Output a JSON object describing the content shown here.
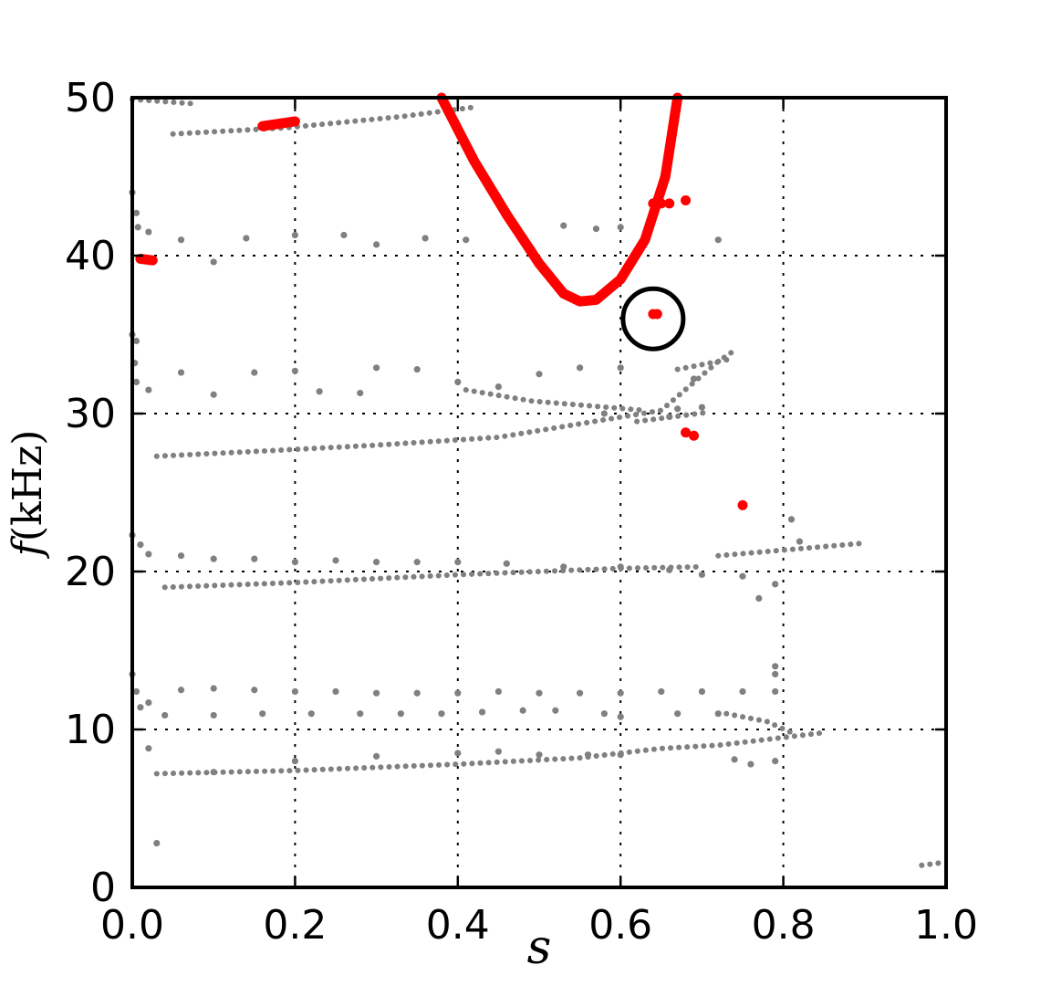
{
  "chart_data": {
    "type": "scatter",
    "title": "",
    "xlabel": "s",
    "ylabel_main": "f",
    "ylabel_unit": "(kHz)",
    "xlim": [
      0.0,
      1.0
    ],
    "ylim": [
      0,
      50
    ],
    "grid": true,
    "grid_style": "dotted",
    "x_ticks": [
      "0.0",
      "0.2",
      "0.4",
      "0.6",
      "0.8",
      "1.0"
    ],
    "y_ticks": [
      "0",
      "10",
      "20",
      "30",
      "40",
      "50"
    ],
    "colors": {
      "gray": "#808080",
      "red": "#ff0000",
      "marker": "#000000"
    },
    "gray_lines": [
      {
        "x": [
          0.05,
          0.19,
          0.33,
          0.42
        ],
        "y": [
          47.7,
          48.1,
          48.8,
          49.4
        ]
      },
      {
        "x": [
          0.0,
          0.08
        ],
        "y": [
          49.9,
          49.6
        ]
      },
      {
        "x": [
          0.03,
          0.15,
          0.3,
          0.45,
          0.65,
          0.72,
          0.74
        ],
        "y": [
          27.3,
          27.6,
          28.0,
          28.5,
          30.2,
          33.3,
          34.0
        ]
      },
      {
        "x": [
          0.62,
          0.71
        ],
        "y": [
          29.5,
          30.1
        ]
      },
      {
        "x": [
          0.67,
          0.74
        ],
        "y": [
          32.8,
          33.5
        ]
      },
      {
        "x": [
          0.04,
          0.2,
          0.4,
          0.6,
          0.7
        ],
        "y": [
          19.0,
          19.3,
          19.8,
          20.2,
          20.3
        ]
      },
      {
        "x": [
          0.72,
          0.9
        ],
        "y": [
          21.0,
          21.8
        ]
      },
      {
        "x": [
          0.03,
          0.2,
          0.4,
          0.55,
          0.65,
          0.72,
          0.85
        ],
        "y": [
          7.2,
          7.4,
          7.8,
          8.2,
          8.8,
          9.0,
          9.8
        ]
      },
      {
        "x": [
          0.73,
          0.78,
          0.81
        ],
        "y": [
          11.0,
          10.5,
          9.8
        ]
      },
      {
        "x": [
          0.97,
          1.0
        ],
        "y": [
          1.4,
          1.6
        ]
      },
      {
        "x": [
          0.41,
          0.49,
          0.63
        ],
        "y": [
          31.5,
          30.8,
          30.2
        ]
      }
    ],
    "gray_points": [
      [
        0.0,
        44.0
      ],
      [
        0.005,
        42.7
      ],
      [
        0.007,
        41.8
      ],
      [
        0.02,
        41.5
      ],
      [
        0.06,
        41.0
      ],
      [
        0.1,
        39.6
      ],
      [
        0.14,
        41.1
      ],
      [
        0.2,
        41.3
      ],
      [
        0.26,
        41.3
      ],
      [
        0.3,
        40.7
      ],
      [
        0.36,
        41.1
      ],
      [
        0.41,
        41.0
      ],
      [
        0.53,
        41.9
      ],
      [
        0.57,
        41.7
      ],
      [
        0.6,
        41.8
      ],
      [
        0.72,
        41.0
      ],
      [
        0.0,
        35.0
      ],
      [
        0.005,
        34.6
      ],
      [
        0.003,
        33.2
      ],
      [
        0.005,
        32.0
      ],
      [
        0.02,
        31.5
      ],
      [
        0.06,
        32.6
      ],
      [
        0.1,
        31.2
      ],
      [
        0.15,
        32.6
      ],
      [
        0.2,
        32.7
      ],
      [
        0.23,
        31.4
      ],
      [
        0.28,
        31.3
      ],
      [
        0.3,
        32.9
      ],
      [
        0.35,
        32.8
      ],
      [
        0.4,
        32.0
      ],
      [
        0.45,
        31.7
      ],
      [
        0.5,
        32.5
      ],
      [
        0.55,
        32.9
      ],
      [
        0.6,
        32.9
      ],
      [
        0.69,
        32.2
      ],
      [
        0.0,
        22.3
      ],
      [
        0.01,
        21.7
      ],
      [
        0.02,
        21.1
      ],
      [
        0.06,
        21.0
      ],
      [
        0.1,
        20.8
      ],
      [
        0.15,
        20.8
      ],
      [
        0.2,
        20.6
      ],
      [
        0.25,
        20.7
      ],
      [
        0.3,
        20.6
      ],
      [
        0.35,
        20.6
      ],
      [
        0.4,
        20.6
      ],
      [
        0.46,
        20.5
      ],
      [
        0.53,
        20.3
      ],
      [
        0.6,
        20.3
      ],
      [
        0.66,
        20.1
      ],
      [
        0.7,
        19.8
      ],
      [
        0.75,
        19.7
      ],
      [
        0.79,
        19.2
      ],
      [
        0.77,
        18.3
      ],
      [
        0.82,
        21.9
      ],
      [
        0.81,
        23.3
      ],
      [
        0.0,
        13.5
      ],
      [
        0.005,
        12.4
      ],
      [
        0.01,
        11.4
      ],
      [
        0.02,
        11.7
      ],
      [
        0.06,
        12.5
      ],
      [
        0.1,
        12.6
      ],
      [
        0.15,
        12.5
      ],
      [
        0.2,
        12.4
      ],
      [
        0.25,
        12.4
      ],
      [
        0.3,
        12.3
      ],
      [
        0.35,
        12.3
      ],
      [
        0.4,
        12.3
      ],
      [
        0.45,
        12.4
      ],
      [
        0.5,
        12.3
      ],
      [
        0.55,
        12.3
      ],
      [
        0.6,
        12.3
      ],
      [
        0.65,
        12.4
      ],
      [
        0.7,
        12.4
      ],
      [
        0.75,
        12.4
      ],
      [
        0.79,
        12.4
      ],
      [
        0.79,
        13.5
      ],
      [
        0.79,
        14.0
      ],
      [
        0.04,
        10.9
      ],
      [
        0.1,
        10.9
      ],
      [
        0.16,
        11.0
      ],
      [
        0.22,
        11.0
      ],
      [
        0.28,
        11.0
      ],
      [
        0.33,
        11.0
      ],
      [
        0.38,
        11.0
      ],
      [
        0.43,
        11.1
      ],
      [
        0.48,
        11.2
      ],
      [
        0.52,
        11.2
      ],
      [
        0.58,
        11.0
      ],
      [
        0.6,
        10.8
      ],
      [
        0.67,
        11.0
      ],
      [
        0.72,
        11.0
      ],
      [
        0.02,
        8.8
      ],
      [
        0.03,
        2.8
      ],
      [
        0.1,
        7.3
      ],
      [
        0.2,
        8.0
      ],
      [
        0.3,
        8.3
      ],
      [
        0.4,
        8.5
      ],
      [
        0.45,
        8.6
      ],
      [
        0.5,
        8.4
      ],
      [
        0.56,
        8.4
      ],
      [
        0.6,
        8.4
      ],
      [
        0.74,
        8.1
      ],
      [
        0.76,
        7.8
      ],
      [
        0.79,
        8.0
      ],
      [
        0.66,
        29.8
      ],
      [
        0.58,
        30.0
      ],
      [
        0.67,
        30.3
      ],
      [
        0.7,
        30.4
      ]
    ],
    "red_lines": [
      {
        "x": [
          0.38,
          0.42,
          0.46,
          0.5,
          0.53,
          0.55,
          0.57,
          0.6,
          0.63,
          0.655,
          0.67
        ],
        "y": [
          50.0,
          46.0,
          42.6,
          39.5,
          37.6,
          37.1,
          37.2,
          38.5,
          41.0,
          45.0,
          50.0
        ]
      },
      {
        "x": [
          0.16,
          0.2
        ],
        "y": [
          48.2,
          48.5
        ]
      },
      {
        "x": [
          0.01,
          0.025
        ],
        "y": [
          39.8,
          39.7
        ]
      }
    ],
    "red_points": [
      [
        0.64,
        43.3
      ],
      [
        0.65,
        43.3
      ],
      [
        0.66,
        43.3
      ],
      [
        0.68,
        43.5
      ],
      [
        0.64,
        36.3
      ],
      [
        0.645,
        36.3
      ],
      [
        0.68,
        28.8
      ],
      [
        0.69,
        28.6
      ],
      [
        0.75,
        24.2
      ]
    ],
    "circle_marker": {
      "x": 0.64,
      "y": 36.0
    }
  }
}
